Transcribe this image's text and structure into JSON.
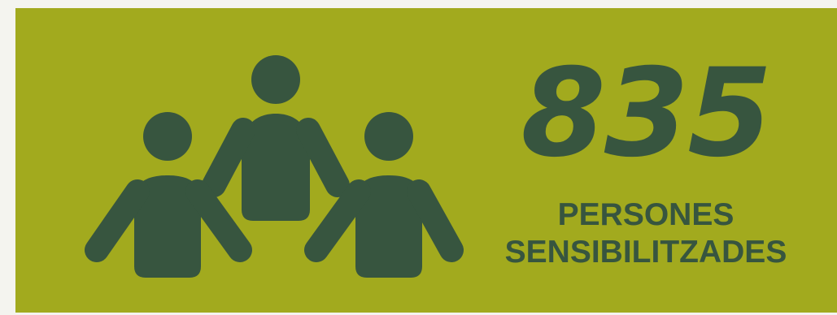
{
  "stat": {
    "value": "835",
    "label_line1": "PERSONES",
    "label_line2": "SENSIBILITZADES"
  },
  "icon": {
    "name": "people-group-icon"
  },
  "colors": {
    "page_background": "#f4f4ef",
    "card_background": "#a2aa1e",
    "foreground": "#37553f"
  }
}
